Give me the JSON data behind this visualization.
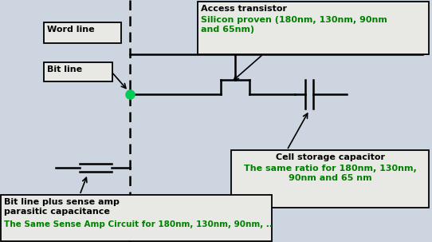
{
  "bg_color": "#cdd5e0",
  "line_color": "#000000",
  "green_color": "#008000",
  "box_bg": "#e8e8e4",
  "word_line_label": "Word line",
  "bit_line_label": "Bit line",
  "access_transistor_title": "Access transistor",
  "access_transistor_text": "Silicon proven (180nm, 130nm, 90nm\nand 65nm)",
  "cell_cap_title": "Cell storage capacitor",
  "cell_cap_text": "The same ratio for 180nm, 130nm,\n90nm and 65 nm",
  "bottom_title": "Bit line plus sense amp\nparasitic capacitance",
  "bottom_text": "The Same Sense Amp Circuit for 180nm, 130nm, 90nm, .."
}
